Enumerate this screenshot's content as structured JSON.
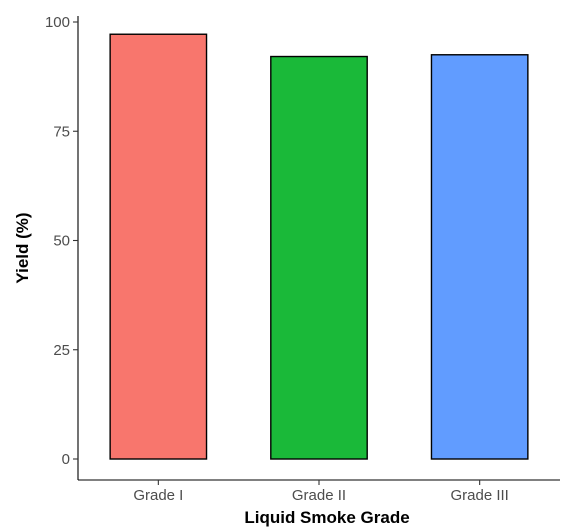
{
  "chart_data": {
    "type": "bar",
    "title": "",
    "xlabel": "Liquid Smoke Grade",
    "ylabel": "Yield (%)",
    "categories": [
      "Grade I",
      "Grade II",
      "Grade III"
    ],
    "values": [
      97.2,
      92.1,
      92.5
    ],
    "colors": [
      "#F8766D",
      "#1AB939",
      "#619CFF"
    ],
    "ylim": [
      0,
      100
    ],
    "yticks": [
      0,
      25,
      50,
      75,
      100
    ],
    "ytick_labels": [
      "0",
      "25",
      "50",
      "75",
      "100"
    ],
    "grid": false,
    "legend": "none"
  }
}
